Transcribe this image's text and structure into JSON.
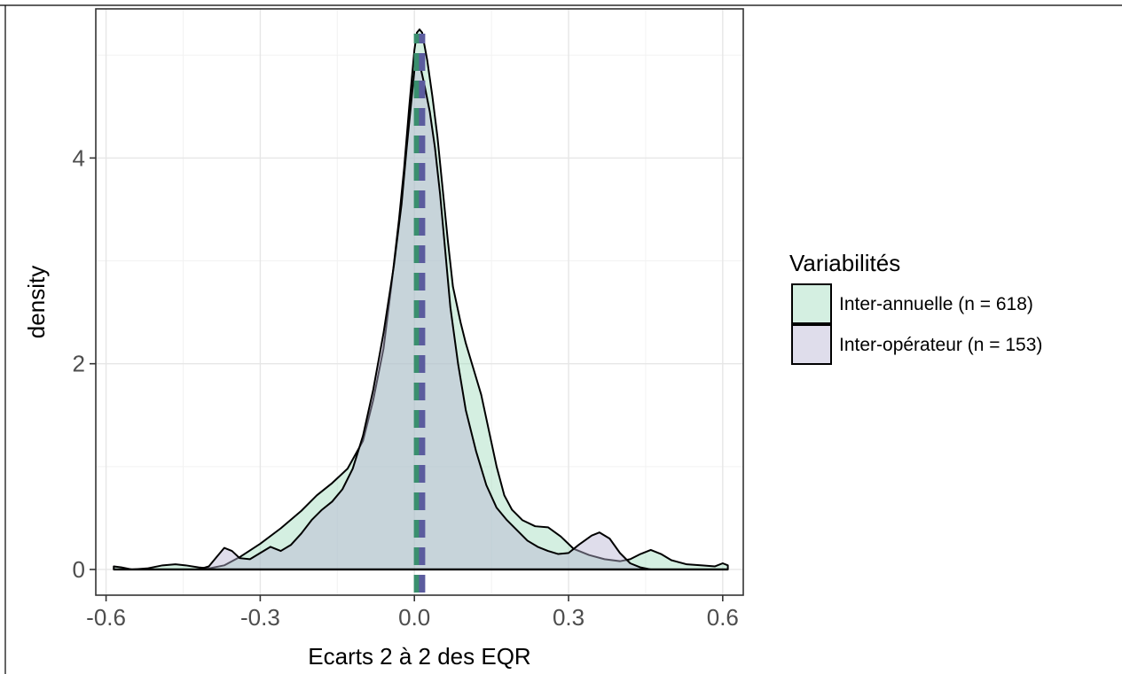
{
  "chart_data": {
    "type": "area",
    "title": "",
    "xlabel": "Ecarts 2 à 2 des EQR",
    "ylabel": "density",
    "xlim": [
      -0.62,
      0.64
    ],
    "ylim": [
      -0.25,
      5.45
    ],
    "x_ticks": [
      -0.6,
      -0.3,
      0.0,
      0.3,
      0.6
    ],
    "x_tick_labels": [
      "-0.6",
      "-0.3",
      "0.0",
      "0.3",
      "0.6"
    ],
    "y_ticks": [
      0,
      2,
      4
    ],
    "y_tick_labels": [
      "0",
      "2",
      "4"
    ],
    "grid": true,
    "legend_position": "right",
    "legend_title": "Variabilités",
    "series": [
      {
        "name": "Inter-annuelle (n = 618)",
        "fill": "#9fdbbd",
        "mean_line": 0.005,
        "mean_line_color": "#3a8f6e",
        "points": [
          [
            -0.585,
            0.03
          ],
          [
            -0.57,
            0.02
          ],
          [
            -0.55,
            0.0
          ],
          [
            -0.52,
            0.01
          ],
          [
            -0.49,
            0.04
          ],
          [
            -0.465,
            0.05
          ],
          [
            -0.445,
            0.04
          ],
          [
            -0.42,
            0.02
          ],
          [
            -0.4,
            0.01
          ],
          [
            -0.37,
            0.04
          ],
          [
            -0.34,
            0.12
          ],
          [
            -0.3,
            0.25
          ],
          [
            -0.26,
            0.4
          ],
          [
            -0.22,
            0.57
          ],
          [
            -0.19,
            0.72
          ],
          [
            -0.16,
            0.84
          ],
          [
            -0.13,
            0.98
          ],
          [
            -0.1,
            1.25
          ],
          [
            -0.08,
            1.65
          ],
          [
            -0.06,
            2.15
          ],
          [
            -0.045,
            2.75
          ],
          [
            -0.03,
            3.4
          ],
          [
            -0.02,
            3.9
          ],
          [
            -0.01,
            4.5
          ],
          [
            0.0,
            5.05
          ],
          [
            0.005,
            5.22
          ],
          [
            0.01,
            5.25
          ],
          [
            0.015,
            5.22
          ],
          [
            0.025,
            4.95
          ],
          [
            0.035,
            4.6
          ],
          [
            0.045,
            4.2
          ],
          [
            0.055,
            3.7
          ],
          [
            0.065,
            3.2
          ],
          [
            0.075,
            2.75
          ],
          [
            0.09,
            2.4
          ],
          [
            0.1,
            2.2
          ],
          [
            0.115,
            1.95
          ],
          [
            0.13,
            1.7
          ],
          [
            0.145,
            1.35
          ],
          [
            0.16,
            1.0
          ],
          [
            0.175,
            0.72
          ],
          [
            0.19,
            0.58
          ],
          [
            0.21,
            0.48
          ],
          [
            0.235,
            0.42
          ],
          [
            0.26,
            0.41
          ],
          [
            0.285,
            0.32
          ],
          [
            0.31,
            0.2
          ],
          [
            0.34,
            0.14
          ],
          [
            0.37,
            0.1
          ],
          [
            0.4,
            0.08
          ],
          [
            0.42,
            0.1
          ],
          [
            0.44,
            0.15
          ],
          [
            0.46,
            0.19
          ],
          [
            0.48,
            0.15
          ],
          [
            0.5,
            0.09
          ],
          [
            0.53,
            0.05
          ],
          [
            0.56,
            0.04
          ],
          [
            0.585,
            0.03
          ],
          [
            0.6,
            0.06
          ],
          [
            0.61,
            0.04
          ]
        ]
      },
      {
        "name": "Inter-opérateur (n = 153)",
        "fill": "#b8b4d2",
        "mean_line": 0.015,
        "mean_line_color": "#5b5c9e",
        "points": [
          [
            -0.42,
            0.0
          ],
          [
            -0.4,
            0.03
          ],
          [
            -0.385,
            0.12
          ],
          [
            -0.37,
            0.21
          ],
          [
            -0.355,
            0.18
          ],
          [
            -0.34,
            0.11
          ],
          [
            -0.32,
            0.1
          ],
          [
            -0.3,
            0.16
          ],
          [
            -0.28,
            0.22
          ],
          [
            -0.26,
            0.18
          ],
          [
            -0.24,
            0.24
          ],
          [
            -0.22,
            0.35
          ],
          [
            -0.2,
            0.48
          ],
          [
            -0.18,
            0.58
          ],
          [
            -0.16,
            0.66
          ],
          [
            -0.14,
            0.78
          ],
          [
            -0.12,
            0.98
          ],
          [
            -0.1,
            1.3
          ],
          [
            -0.08,
            1.75
          ],
          [
            -0.06,
            2.3
          ],
          [
            -0.04,
            2.95
          ],
          [
            -0.025,
            3.55
          ],
          [
            -0.015,
            4.1
          ],
          [
            -0.005,
            4.6
          ],
          [
            0.0,
            4.85
          ],
          [
            0.005,
            4.95
          ],
          [
            0.012,
            4.88
          ],
          [
            0.02,
            4.7
          ],
          [
            0.03,
            4.45
          ],
          [
            0.04,
            4.1
          ],
          [
            0.05,
            3.65
          ],
          [
            0.06,
            3.1
          ],
          [
            0.07,
            2.55
          ],
          [
            0.085,
            2.0
          ],
          [
            0.1,
            1.55
          ],
          [
            0.12,
            1.15
          ],
          [
            0.14,
            0.82
          ],
          [
            0.16,
            0.6
          ],
          [
            0.18,
            0.48
          ],
          [
            0.2,
            0.38
          ],
          [
            0.22,
            0.28
          ],
          [
            0.24,
            0.22
          ],
          [
            0.26,
            0.18
          ],
          [
            0.28,
            0.15
          ],
          [
            0.3,
            0.16
          ],
          [
            0.32,
            0.24
          ],
          [
            0.345,
            0.33
          ],
          [
            0.36,
            0.36
          ],
          [
            0.38,
            0.3
          ],
          [
            0.4,
            0.16
          ],
          [
            0.42,
            0.06
          ],
          [
            0.44,
            0.02
          ],
          [
            0.46,
            0.0
          ]
        ]
      }
    ]
  }
}
